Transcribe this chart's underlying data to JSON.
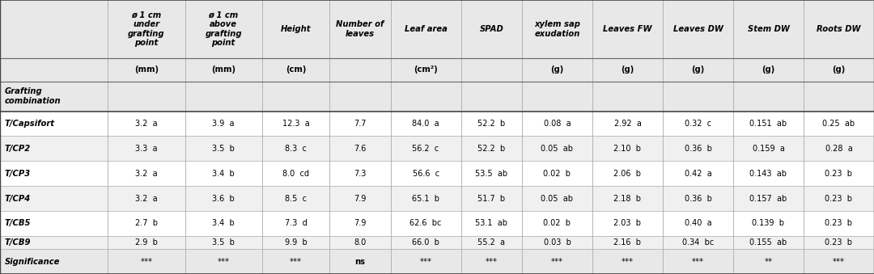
{
  "col_headers": [
    "ø 1 cm\nunder\ngrafting\npoint",
    "ø 1 cm\nabove\ngrafting\npoint",
    "Height",
    "Number of\nleaves",
    "Leaf area",
    "SPAD",
    "xylem sap\nexudation",
    "Leaves FW",
    "Leaves DW",
    "Stem DW",
    "Roots DW"
  ],
  "col_units": [
    "(mm)",
    "(mm)",
    "(cm)",
    "",
    "(cm²)",
    "",
    "(g)",
    "(g)",
    "(g)",
    "(g)",
    "(g)"
  ],
  "row_labels": [
    "Grafting\ncombination",
    "T/Capsifort",
    "T/CP2",
    "T/CP3",
    "T/CP4",
    "T/CB5",
    "T/CB9",
    "",
    "Significance"
  ],
  "row_label_bold_italic": [
    false,
    true,
    true,
    true,
    true,
    true,
    true,
    false,
    true
  ],
  "data": [
    [
      "",
      "",
      "",
      "",
      "",
      "",
      "",
      "",
      "",
      "",
      ""
    ],
    [
      "3.2  a",
      "3.9  a",
      "12.3  a",
      "7.7",
      "84.0  a",
      "52.2  b",
      "0.08  a",
      "2.92  a",
      "0.32  c",
      "0.151  ab",
      "0.25  ab"
    ],
    [
      "3.3  a",
      "3.5  b",
      "8.3  c",
      "7.6",
      "56.2  c",
      "52.2  b",
      "0.05  ab",
      "2.10  b",
      "0.36  b",
      "0.159  a",
      "0.28  a"
    ],
    [
      "3.2  a",
      "3.4  b",
      "8.0  cd",
      "7.3",
      "56.6  c",
      "53.5  ab",
      "0.02  b",
      "2.06  b",
      "0.42  a",
      "0.143  ab",
      "0.23  b"
    ],
    [
      "3.2  a",
      "3.6  b",
      "8.5  c",
      "7.9",
      "65.1  b",
      "51.7  b",
      "0.05  ab",
      "2.18  b",
      "0.36  b",
      "0.157  ab",
      "0.23  b"
    ],
    [
      "2.7  b",
      "3.4  b",
      "7.3  d",
      "7.9",
      "62.6  bc",
      "53.1  ab",
      "0.02  b",
      "2.03  b",
      "0.40  a",
      "0.139  b",
      "0.23  b"
    ],
    [
      "2.9  b",
      "3.5  b",
      "9.9  b",
      "8.0",
      "66.0  b",
      "55.2  a",
      "0.03  b",
      "2.16  b",
      "0.34  bc",
      "0.155  ab",
      "0.23  b"
    ],
    [
      "",
      "",
      "",
      "",
      "",
      "",
      "",
      "",
      "",
      "",
      ""
    ],
    [
      "***",
      "***",
      "***",
      "ns",
      "***",
      "***",
      "***",
      "***",
      "***",
      "**",
      "***"
    ]
  ],
  "significance_italic": true,
  "bg_color_header": "#e8e8e8",
  "bg_color_data_odd": "#ffffff",
  "bg_color_data_even": "#f0f0f0",
  "line_color": "#999999",
  "thick_line_color": "#555555"
}
